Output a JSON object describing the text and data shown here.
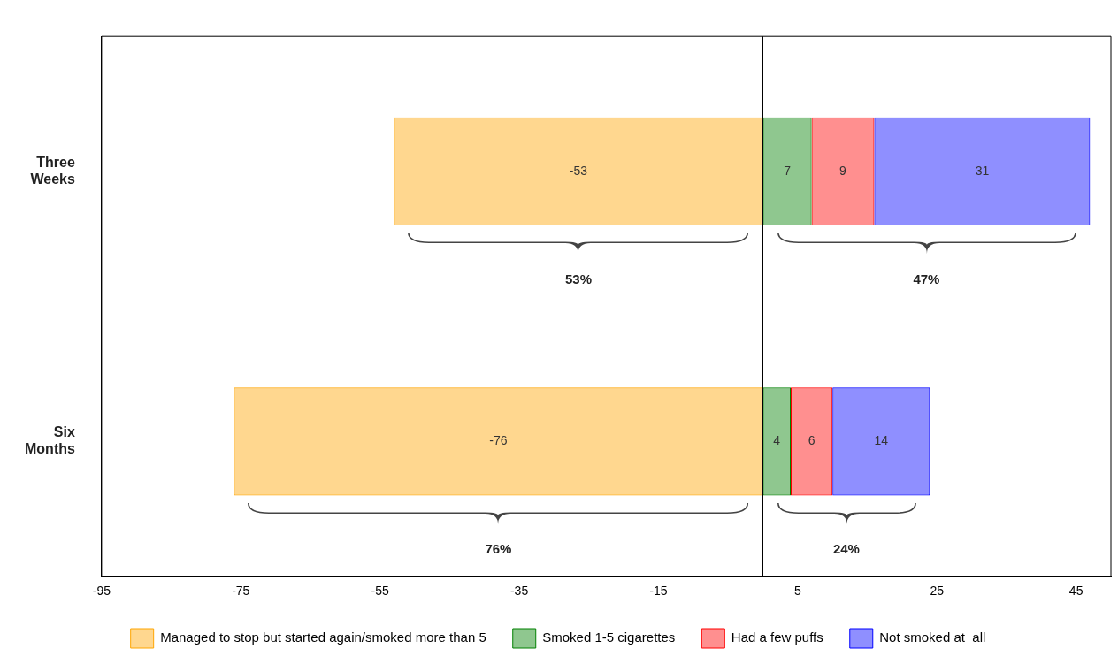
{
  "chart_data": {
    "type": "bar",
    "orientation": "horizontal",
    "stacked": true,
    "categories": [
      "Three Weeks",
      "Six Months"
    ],
    "series": [
      {
        "name": "Managed to stop but started again/smoked more than 5",
        "color": "#ffa500",
        "values": [
          -53,
          -76
        ]
      },
      {
        "name": "Smoked 1-5 cigarettes",
        "color": "#008000",
        "values": [
          7,
          4
        ]
      },
      {
        "name": "Had a few puffs",
        "color": "#ff0000",
        "values": [
          9,
          6
        ]
      },
      {
        "name": "Not smoked at  all",
        "color": "#0000ff",
        "values": [
          31,
          14
        ]
      }
    ],
    "xlim": [
      -95,
      50
    ],
    "xticks": [
      -95,
      -75,
      -55,
      -35,
      -15,
      5,
      25,
      45
    ],
    "grid": false,
    "legend": "bottom",
    "data_labels": true,
    "ref_lines": [
      {
        "axis": "x",
        "value": 0
      }
    ],
    "annotations": [
      "53%",
      "47%",
      "76%",
      "24%"
    ]
  }
}
